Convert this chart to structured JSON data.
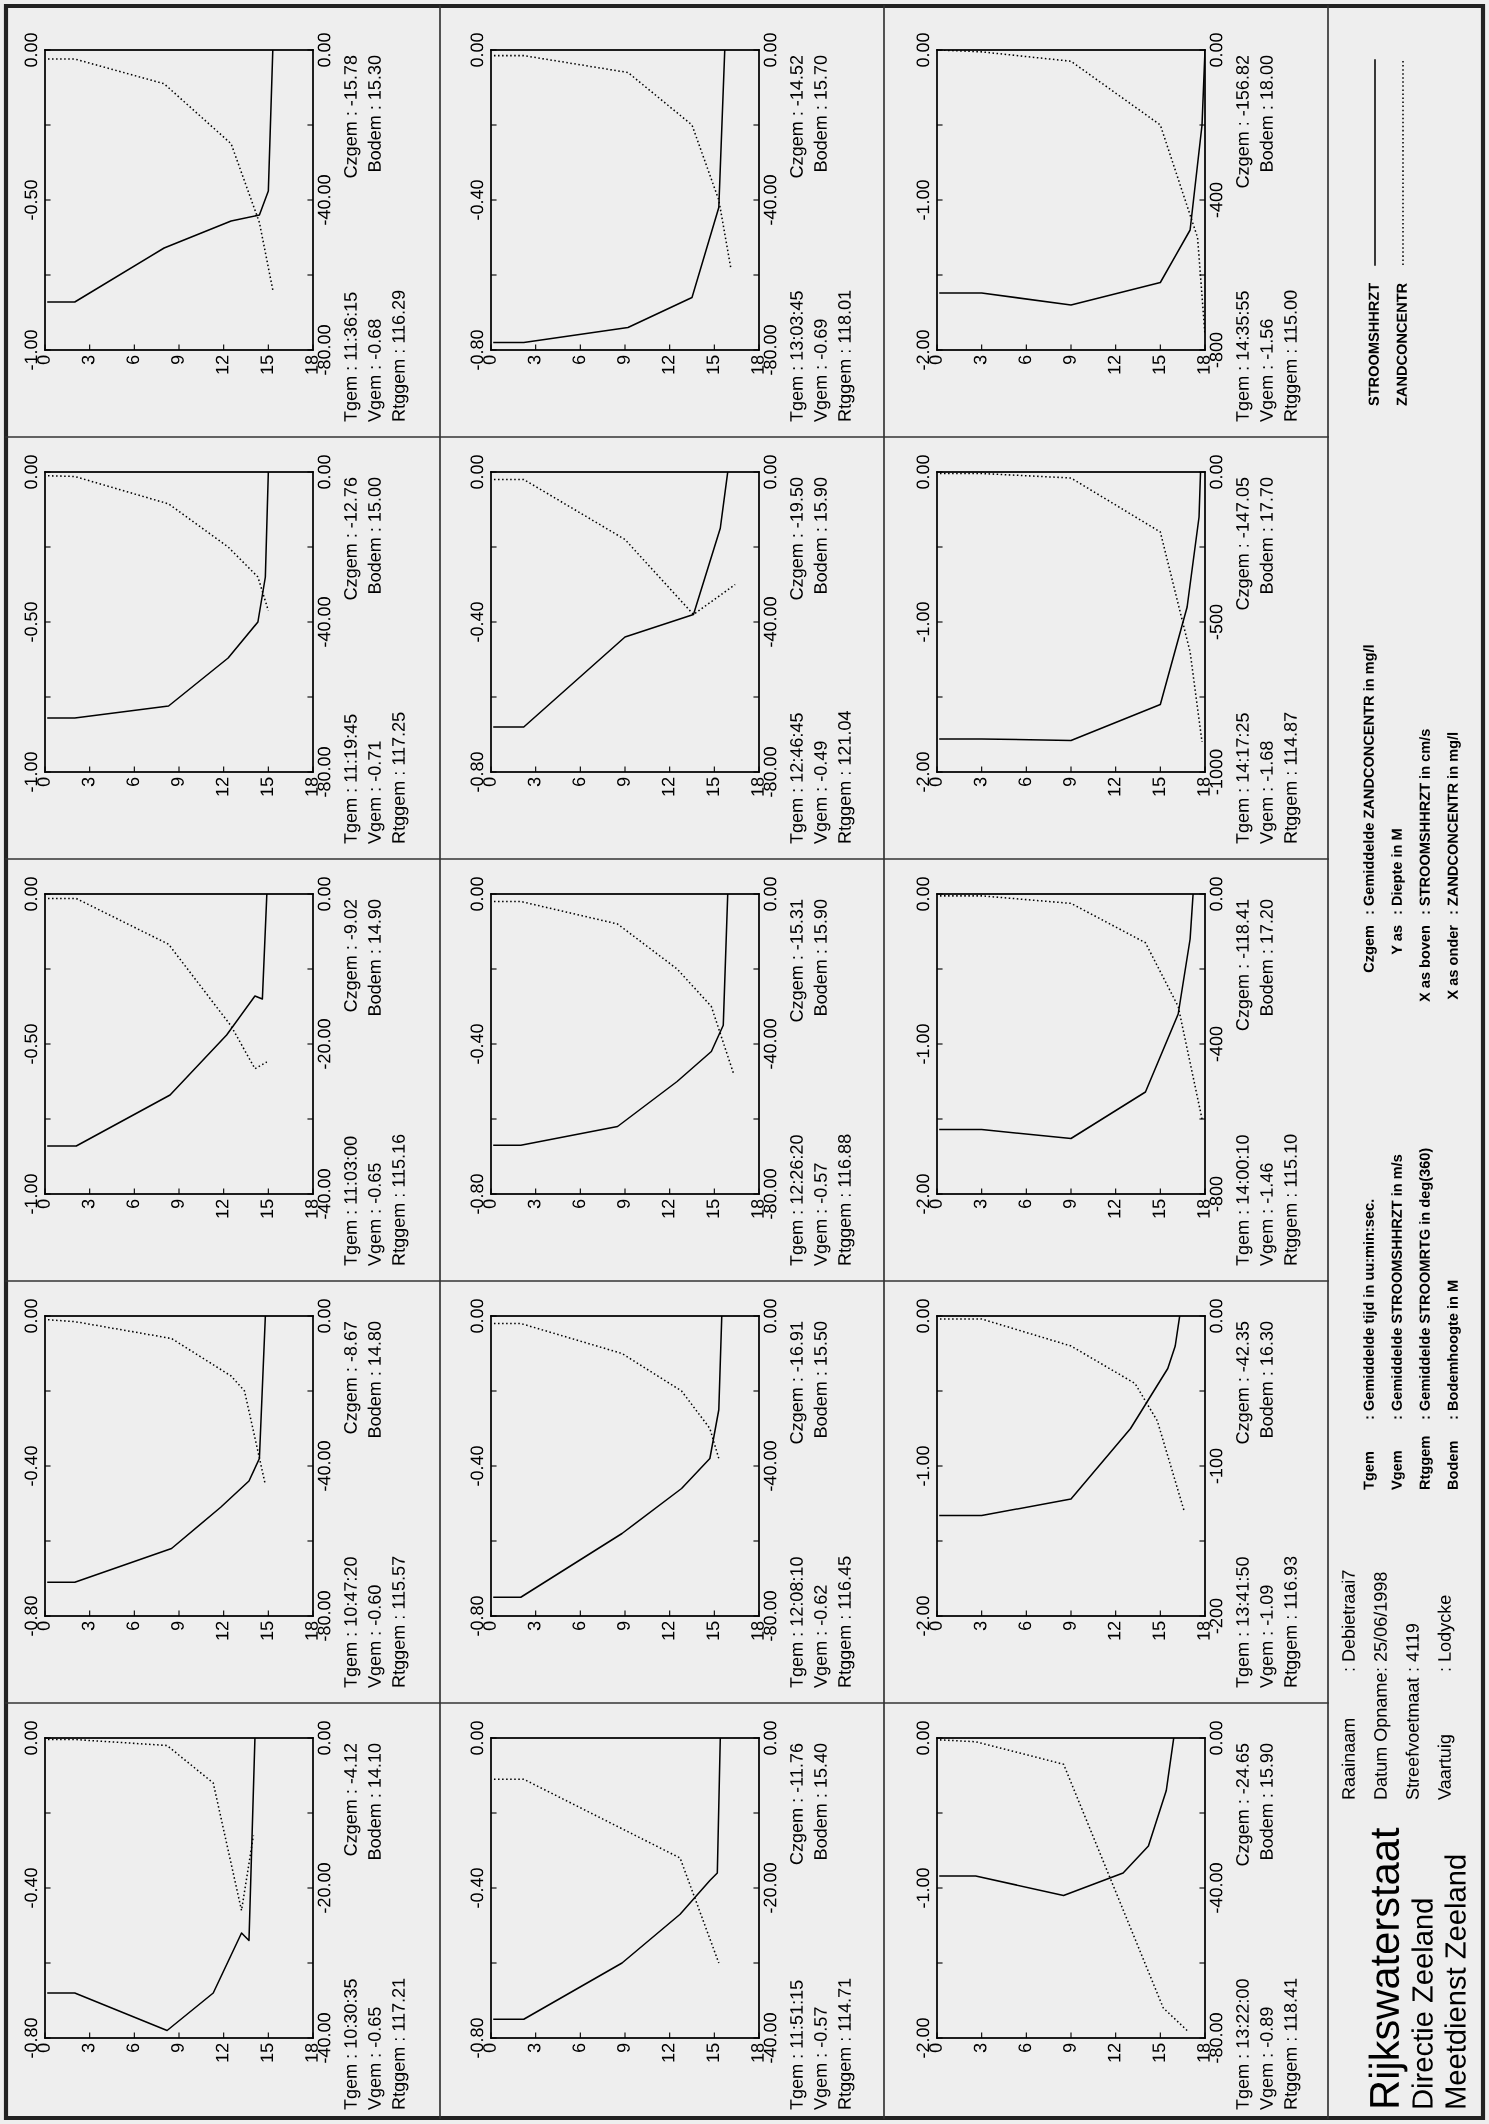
{
  "chart_data": [
    {
      "type": "line",
      "xlim": [
        0,
        18
      ],
      "xticks": [
        0,
        3,
        6,
        9,
        12,
        15,
        18
      ],
      "ylim": [
        -0.8,
        0
      ],
      "yticks": [
        {
          "value": -0.8,
          "label": "-0.80"
        },
        {
          "value": -0.6,
          "label": null
        },
        {
          "value": -0.4,
          "label": "-0.40"
        },
        {
          "value": -0.2,
          "label": null
        },
        {
          "value": 0,
          "label": "0.00"
        }
      ],
      "y2lim": [
        -40,
        0
      ],
      "y2ticks": [
        {
          "value": -40,
          "label": "-40.00"
        },
        {
          "value": -30,
          "label": null
        },
        {
          "value": -20,
          "label": "-20.00"
        },
        {
          "value": -10,
          "label": null
        },
        {
          "value": 0,
          "label": "0.00"
        }
      ],
      "series": [
        {
          "color": "#000000",
          "line_style": "solid",
          "x": [
            0.2,
            2,
            8.2,
            11.3,
            13.2,
            13.7,
            14.1
          ],
          "values": [
            -0.68,
            -0.68,
            -0.78,
            -0.68,
            -0.52,
            -0.54,
            0
          ]
        },
        {
          "color": "#000000",
          "line_style": "dotted",
          "axis": "y2",
          "x": [
            0.2,
            2,
            8.2,
            11.3,
            13.2,
            14.0
          ],
          "values": [
            -0.2,
            -0.2,
            -1.0,
            -6,
            -23,
            -13
          ]
        }
      ],
      "annotations": [
        "Tgem : 10:30:35",
        "Czgem : -4.12",
        "Vgem : -0.65",
        "Bodem : 14.10",
        "Rtggem : 117.21"
      ]
    },
    {
      "type": "line",
      "xlim": [
        0,
        18
      ],
      "xticks": [
        0,
        3,
        6,
        9,
        12,
        15,
        18
      ],
      "ylim": [
        -0.8,
        0
      ],
      "yticks": [
        {
          "value": -0.8,
          "label": "-0.80"
        },
        {
          "value": -0.6,
          "label": null
        },
        {
          "value": -0.4,
          "label": "-0.40"
        },
        {
          "value": -0.2,
          "label": null
        },
        {
          "value": 0,
          "label": "0.00"
        }
      ],
      "y2lim": [
        -80,
        0
      ],
      "y2ticks": [
        {
          "value": -80,
          "label": "-80.00"
        },
        {
          "value": -60,
          "label": null
        },
        {
          "value": -40,
          "label": "-40.00"
        },
        {
          "value": -20,
          "label": null
        },
        {
          "value": 0,
          "label": "0.00"
        }
      ],
      "series": [
        {
          "color": "#000000",
          "line_style": "solid",
          "x": [
            0.2,
            2,
            8.5,
            11.8,
            13.7,
            14.4,
            14.8
          ],
          "values": [
            -0.71,
            -0.71,
            -0.62,
            -0.51,
            -0.44,
            -0.38,
            0
          ]
        },
        {
          "color": "#000000",
          "line_style": "dotted",
          "axis": "y2",
          "x": [
            0.2,
            2,
            8.5,
            12.5,
            13.4,
            14.8
          ],
          "values": [
            -1,
            -1.5,
            -6,
            -16,
            -20,
            -45
          ]
        }
      ],
      "annotations": [
        "Tgem : 10:47:20",
        "Czgem : -8.67",
        "Vgem : -0.60",
        "Bodem : 14.80",
        "Rtggem : 115.57"
      ]
    },
    {
      "type": "line",
      "xlim": [
        0,
        18
      ],
      "xticks": [
        0,
        3,
        6,
        9,
        12,
        15,
        18
      ],
      "ylim": [
        -1,
        0
      ],
      "yticks": [
        {
          "value": -1,
          "label": "-1.00"
        },
        {
          "value": -0.75,
          "label": null
        },
        {
          "value": -0.5,
          "label": "-0.50"
        },
        {
          "value": -0.25,
          "label": null
        },
        {
          "value": 0,
          "label": "0.00"
        }
      ],
      "y2lim": [
        -40,
        0
      ],
      "y2ticks": [
        {
          "value": -40,
          "label": "-40.00"
        },
        {
          "value": -30,
          "label": null
        },
        {
          "value": -20,
          "label": "-20.00"
        },
        {
          "value": -10,
          "label": null
        },
        {
          "value": 0,
          "label": "0.00"
        }
      ],
      "series": [
        {
          "color": "#000000",
          "line_style": "solid",
          "x": [
            0.2,
            2.1,
            8.4,
            12.2,
            14.1,
            14.6,
            14.9
          ],
          "values": [
            -0.84,
            -0.84,
            -0.67,
            -0.47,
            -0.34,
            -0.35,
            0
          ]
        },
        {
          "color": "#000000",
          "line_style": "dotted",
          "axis": "y2",
          "x": [
            0.2,
            2.1,
            8.3,
            12.5,
            14.1,
            14.9
          ],
          "values": [
            -0.6,
            -0.6,
            -6.7,
            -17.6,
            -23.3,
            -22.4
          ]
        }
      ],
      "annotations": [
        "Tgem : 11:03:00",
        "Czgem : -9.02",
        "Vgem : -0.65",
        "Bodem : 14.90",
        "Rtggem : 115.16"
      ]
    },
    {
      "type": "line",
      "xlim": [
        0,
        18
      ],
      "xticks": [
        0,
        3,
        6,
        9,
        12,
        15,
        18
      ],
      "ylim": [
        -1,
        0
      ],
      "yticks": [
        {
          "value": -1,
          "label": "-1.00"
        },
        {
          "value": -0.75,
          "label": null
        },
        {
          "value": -0.5,
          "label": "-0.50"
        },
        {
          "value": -0.25,
          "label": null
        },
        {
          "value": 0,
          "label": "0.00"
        }
      ],
      "y2lim": [
        -80,
        0
      ],
      "y2ticks": [
        {
          "value": -80,
          "label": "-80.00"
        },
        {
          "value": -60,
          "label": null
        },
        {
          "value": -40,
          "label": "-40.00"
        },
        {
          "value": -20,
          "label": null
        },
        {
          "value": 0,
          "label": "0.00"
        }
      ],
      "series": [
        {
          "color": "#000000",
          "line_style": "solid",
          "x": [
            0.2,
            2,
            8.3,
            12.3,
            14.3,
            14.8,
            15.0
          ],
          "values": [
            -0.82,
            -0.82,
            -0.78,
            -0.62,
            -0.5,
            -0.35,
            0
          ]
        },
        {
          "color": "#000000",
          "line_style": "dotted",
          "axis": "y2",
          "x": [
            0.2,
            2,
            8.3,
            12.3,
            14.3,
            15.0
          ],
          "values": [
            -1,
            -1.2,
            -8.5,
            -20,
            -28,
            -37
          ]
        }
      ],
      "annotations": [
        "Tgem : 11:19:45",
        "Czgem : -12.76",
        "Vgem : -0.71",
        "Bodem : 15.00",
        "Rtggem : 117.25"
      ]
    },
    {
      "type": "line",
      "xlim": [
        0,
        18
      ],
      "xticks": [
        0,
        3,
        6,
        9,
        12,
        15,
        18
      ],
      "ylim": [
        -1,
        0
      ],
      "yticks": [
        {
          "value": -1,
          "label": "-1.00"
        },
        {
          "value": -0.75,
          "label": null
        },
        {
          "value": -0.5,
          "label": "-0.50"
        },
        {
          "value": -0.25,
          "label": null
        },
        {
          "value": 0,
          "label": "0.00"
        }
      ],
      "y2lim": [
        -80,
        0
      ],
      "y2ticks": [
        {
          "value": -80,
          "label": "-80.00"
        },
        {
          "value": -60,
          "label": null
        },
        {
          "value": -40,
          "label": "-40.00"
        },
        {
          "value": -20,
          "label": null
        },
        {
          "value": 0,
          "label": "0.00"
        }
      ],
      "series": [
        {
          "color": "#000000",
          "line_style": "solid",
          "x": [
            0.2,
            2,
            8,
            12.5,
            14.4,
            15.0,
            15.3
          ],
          "values": [
            -0.84,
            -0.84,
            -0.66,
            -0.57,
            -0.55,
            -0.47,
            0
          ]
        },
        {
          "color": "#000000",
          "line_style": "dotted",
          "axis": "y2",
          "x": [
            0.2,
            2,
            8,
            12.5,
            14.4,
            15.3
          ],
          "values": [
            -2.4,
            -2.4,
            -9,
            -25,
            -46,
            -64
          ]
        }
      ],
      "annotations": [
        "Tgem : 11:36:15",
        "Czgem : -15.78",
        "Vgem : -0.68",
        "Bodem : 15.30",
        "Rtggem : 116.29"
      ]
    },
    {
      "type": "line",
      "xlim": [
        0,
        18
      ],
      "xticks": [
        0,
        3,
        6,
        9,
        12,
        15,
        18
      ],
      "ylim": [
        -0.8,
        0
      ],
      "yticks": [
        {
          "value": -0.8,
          "label": "-0.80"
        },
        {
          "value": -0.6,
          "label": null
        },
        {
          "value": -0.4,
          "label": "-0.40"
        },
        {
          "value": -0.2,
          "label": null
        },
        {
          "value": 0,
          "label": "0.00"
        }
      ],
      "y2lim": [
        -40,
        0
      ],
      "y2ticks": [
        {
          "value": -40,
          "label": "-40.00"
        },
        {
          "value": -30,
          "label": null
        },
        {
          "value": -20,
          "label": "-20.00"
        },
        {
          "value": -10,
          "label": null
        },
        {
          "value": 0,
          "label": "0.00"
        }
      ],
      "series": [
        {
          "color": "#000000",
          "line_style": "solid",
          "x": [
            0.2,
            2.2,
            8.8,
            12.7,
            14.7,
            15.2,
            15.4
          ],
          "values": [
            -0.75,
            -0.75,
            -0.6,
            -0.47,
            -0.38,
            -0.36,
            0
          ]
        },
        {
          "color": "#000000",
          "line_style": "dotted",
          "axis": "y2",
          "x": [
            0.2,
            2.2,
            12.7,
            15.3
          ],
          "values": [
            -5.5,
            -5.5,
            -16,
            -30
          ]
        }
      ],
      "annotations": [
        "Tgem : 11:51:15",
        "Czgem : -11.76",
        "Vgem : -0.57",
        "Bodem : 15.40",
        "Rtggem : 114.71"
      ]
    },
    {
      "type": "line",
      "xlim": [
        0,
        18
      ],
      "xticks": [
        0,
        3,
        6,
        9,
        12,
        15,
        18
      ],
      "ylim": [
        -0.8,
        0
      ],
      "yticks": [
        {
          "value": -0.8,
          "label": "-0.80"
        },
        {
          "value": -0.6,
          "label": null
        },
        {
          "value": -0.4,
          "label": "-0.40"
        },
        {
          "value": -0.2,
          "label": null
        },
        {
          "value": 0,
          "label": "0.00"
        }
      ],
      "y2lim": [
        -80,
        0
      ],
      "y2ticks": [
        {
          "value": -80,
          "label": "-80.00"
        },
        {
          "value": -60,
          "label": null
        },
        {
          "value": -40,
          "label": "-40.00"
        },
        {
          "value": -20,
          "label": null
        },
        {
          "value": 0,
          "label": "0.00"
        }
      ],
      "series": [
        {
          "color": "#000000",
          "line_style": "solid",
          "x": [
            0.2,
            2,
            8.8,
            12.8,
            14.7,
            15.3,
            15.5
          ],
          "values": [
            -0.75,
            -0.75,
            -0.58,
            -0.46,
            -0.38,
            -0.25,
            0
          ]
        },
        {
          "color": "#000000",
          "line_style": "dotted",
          "axis": "y2",
          "x": [
            0.2,
            2,
            8.8,
            12.8,
            14.7,
            15.3
          ],
          "values": [
            -2,
            -2,
            -10,
            -20,
            -30,
            -38
          ]
        }
      ],
      "annotations": [
        "Tgem : 12:08:10",
        "Czgem : -16.91",
        "Vgem : -0.62",
        "Bodem : 15.50",
        "Rtggem : 116.45"
      ]
    },
    {
      "type": "line",
      "xlim": [
        0,
        18
      ],
      "xticks": [
        0,
        3,
        6,
        9,
        12,
        15,
        18
      ],
      "ylim": [
        -0.8,
        0
      ],
      "yticks": [
        {
          "value": -0.8,
          "label": "-0.80"
        },
        {
          "value": -0.6,
          "label": null
        },
        {
          "value": -0.4,
          "label": "-0.40"
        },
        {
          "value": -0.2,
          "label": null
        },
        {
          "value": 0,
          "label": "0.00"
        }
      ],
      "y2lim": [
        -80,
        0
      ],
      "y2ticks": [
        {
          "value": -80,
          "label": "-80.00"
        },
        {
          "value": -60,
          "label": null
        },
        {
          "value": -40,
          "label": "-40.00"
        },
        {
          "value": -20,
          "label": null
        },
        {
          "value": 0,
          "label": "0.00"
        }
      ],
      "series": [
        {
          "color": "#000000",
          "line_style": "solid",
          "x": [
            0.2,
            2,
            8.5,
            12.5,
            14.8,
            15.6,
            15.9
          ],
          "values": [
            -0.67,
            -0.67,
            -0.62,
            -0.5,
            -0.42,
            -0.35,
            0
          ]
        },
        {
          "color": "#000000",
          "line_style": "dotted",
          "axis": "y2",
          "x": [
            0.2,
            2,
            8.5,
            12.5,
            14.8,
            16.3
          ],
          "values": [
            -2,
            -2,
            -8,
            -20,
            -30,
            -48
          ]
        }
      ],
      "annotations": [
        "Tgem : 12:26:20",
        "Czgem : -15.31",
        "Vgem : -0.57",
        "Bodem : 15.90",
        "Rtggem : 116.88"
      ]
    },
    {
      "type": "line",
      "xlim": [
        0,
        18
      ],
      "xticks": [
        0,
        3,
        6,
        9,
        12,
        15,
        18
      ],
      "ylim": [
        -0.8,
        0
      ],
      "yticks": [
        {
          "value": -0.8,
          "label": "-0.80"
        },
        {
          "value": -0.6,
          "label": null
        },
        {
          "value": -0.4,
          "label": "-0.40"
        },
        {
          "value": -0.2,
          "label": null
        },
        {
          "value": 0,
          "label": "0.00"
        }
      ],
      "y2lim": [
        -80,
        0
      ],
      "y2ticks": [
        {
          "value": -80,
          "label": "-80.00"
        },
        {
          "value": -60,
          "label": null
        },
        {
          "value": -40,
          "label": "-40.00"
        },
        {
          "value": -20,
          "label": null
        },
        {
          "value": 0,
          "label": "0.00"
        }
      ],
      "series": [
        {
          "color": "#000000",
          "line_style": "solid",
          "x": [
            0.2,
            2.2,
            9,
            13.6,
            15.4,
            15.9
          ],
          "values": [
            -0.68,
            -0.68,
            -0.44,
            -0.38,
            -0.15,
            0
          ]
        },
        {
          "color": "#000000",
          "line_style": "dotted",
          "axis": "y2",
          "x": [
            0.2,
            2.2,
            9,
            13.6,
            16.4
          ],
          "values": [
            -2,
            -2,
            -18,
            -38,
            -30
          ]
        }
      ],
      "annotations": [
        "Tgem : 12:46:45",
        "Czgem : -19.50",
        "Vgem : -0.49",
        "Bodem : 15.90",
        "Rtggem : 121.04"
      ]
    },
    {
      "type": "line",
      "xlim": [
        0,
        18
      ],
      "xticks": [
        0,
        3,
        6,
        9,
        12,
        15,
        18
      ],
      "ylim": [
        -0.8,
        0
      ],
      "yticks": [
        {
          "value": -0.8,
          "label": "-0.80"
        },
        {
          "value": -0.6,
          "label": null
        },
        {
          "value": -0.4,
          "label": "-0.40"
        },
        {
          "value": -0.2,
          "label": null
        },
        {
          "value": 0,
          "label": "0.00"
        }
      ],
      "y2lim": [
        -80,
        0
      ],
      "y2ticks": [
        {
          "value": -80,
          "label": "-80.00"
        },
        {
          "value": -60,
          "label": null
        },
        {
          "value": -40,
          "label": "-40.00"
        },
        {
          "value": -20,
          "label": null
        },
        {
          "value": 0,
          "label": "0.00"
        }
      ],
      "series": [
        {
          "color": "#000000",
          "line_style": "solid",
          "x": [
            0.2,
            2.2,
            9.2,
            13.5,
            15.3,
            15.7
          ],
          "values": [
            -0.78,
            -0.78,
            -0.74,
            -0.66,
            -0.42,
            0
          ]
        },
        {
          "color": "#000000",
          "line_style": "dotted",
          "axis": "y2",
          "x": [
            0.2,
            2.2,
            9.2,
            13.5,
            15.3,
            16.1
          ],
          "values": [
            -1.5,
            -1.5,
            -6,
            -20,
            -40,
            -58
          ]
        }
      ],
      "annotations": [
        "Tgem : 13:03:45",
        "Czgem : -14.52",
        "Vgem : -0.69",
        "Bodem : 15.70",
        "Rtggem : 118.01"
      ]
    },
    {
      "type": "line",
      "xlim": [
        0,
        18
      ],
      "xticks": [
        0,
        3,
        6,
        9,
        12,
        15,
        18
      ],
      "ylim": [
        -2,
        0
      ],
      "yticks": [
        {
          "value": -2,
          "label": "-2.00"
        },
        {
          "value": -1.5,
          "label": null
        },
        {
          "value": -1,
          "label": "-1.00"
        },
        {
          "value": -0.5,
          "label": null
        },
        {
          "value": 0,
          "label": "0.00"
        }
      ],
      "y2lim": [
        -80,
        0
      ],
      "y2ticks": [
        {
          "value": -80,
          "label": "-80.00"
        },
        {
          "value": -60,
          "label": null
        },
        {
          "value": -40,
          "label": "-40.00"
        },
        {
          "value": -20,
          "label": null
        },
        {
          "value": 0,
          "label": "0.00"
        }
      ],
      "series": [
        {
          "color": "#000000",
          "line_style": "solid",
          "x": [
            0.2,
            2.6,
            8.5,
            12.5,
            14.2,
            15.4,
            15.9
          ],
          "values": [
            -0.92,
            -0.92,
            -1.05,
            -0.9,
            -0.72,
            -0.35,
            0
          ]
        },
        {
          "color": "#000000",
          "line_style": "dotted",
          "axis": "y2",
          "x": [
            0.2,
            2.6,
            8.5,
            15.2,
            16.8
          ],
          "values": [
            -0.5,
            -1,
            -7,
            -72,
            -78
          ]
        }
      ],
      "annotations": [
        "Tgem : 13:22:00",
        "Czgem : -24.65",
        "Vgem : -0.89",
        "Bodem : 15.90",
        "Rtggem : 118.41"
      ]
    },
    {
      "type": "line",
      "xlim": [
        0,
        18
      ],
      "xticks": [
        0,
        3,
        6,
        9,
        12,
        15,
        18
      ],
      "ylim": [
        -2,
        0
      ],
      "yticks": [
        {
          "value": -2,
          "label": "-2.00"
        },
        {
          "value": -1.5,
          "label": null
        },
        {
          "value": -1,
          "label": "-1.00"
        },
        {
          "value": -0.5,
          "label": null
        },
        {
          "value": 0,
          "label": "0.00"
        }
      ],
      "y2lim": [
        -200,
        0
      ],
      "y2ticks": [
        {
          "value": -200,
          "label": "-200"
        },
        {
          "value": -150,
          "label": null
        },
        {
          "value": -100,
          "label": "-100"
        },
        {
          "value": -50,
          "label": null
        },
        {
          "value": 0,
          "label": "0.00"
        }
      ],
      "series": [
        {
          "color": "#000000",
          "line_style": "solid",
          "x": [
            0.2,
            3,
            9,
            13,
            15.5,
            16,
            16.3
          ],
          "values": [
            -1.33,
            -1.33,
            -1.22,
            -0.75,
            -0.35,
            -0.2,
            0
          ]
        },
        {
          "color": "#000000",
          "line_style": "dotted",
          "axis": "y2",
          "x": [
            0.2,
            3,
            9,
            13.3,
            14.8,
            16.6
          ],
          "values": [
            -2,
            -2,
            -20,
            -45,
            -70,
            -130
          ]
        }
      ],
      "annotations": [
        "Tgem : 13:41:50",
        "Czgem : -42.35",
        "Vgem : -1.09",
        "Bodem : 16.30",
        "Rtggem : 116.93"
      ]
    },
    {
      "type": "line",
      "xlim": [
        0,
        18
      ],
      "xticks": [
        0,
        3,
        6,
        9,
        12,
        15,
        18
      ],
      "ylim": [
        -2,
        0
      ],
      "yticks": [
        {
          "value": -2,
          "label": "-2.00"
        },
        {
          "value": -1.5,
          "label": null
        },
        {
          "value": -1,
          "label": "-1.00"
        },
        {
          "value": -0.5,
          "label": null
        },
        {
          "value": 0,
          "label": "0.00"
        }
      ],
      "y2lim": [
        -800,
        0
      ],
      "y2ticks": [
        {
          "value": -800,
          "label": "-800"
        },
        {
          "value": -600,
          "label": null
        },
        {
          "value": -400,
          "label": "-400"
        },
        {
          "value": -200,
          "label": null
        },
        {
          "value": 0,
          "label": "0.00"
        }
      ],
      "series": [
        {
          "color": "#000000",
          "line_style": "solid",
          "x": [
            0.2,
            3,
            9,
            14,
            16.2,
            17.0,
            17.2
          ],
          "values": [
            -1.57,
            -1.57,
            -1.63,
            -1.32,
            -0.8,
            -0.3,
            0
          ]
        },
        {
          "color": "#000000",
          "line_style": "dotted",
          "axis": "y2",
          "x": [
            0.2,
            3,
            9,
            14,
            16.2,
            17.8
          ],
          "values": [
            -5,
            -5,
            -25,
            -130,
            -300,
            -600
          ]
        }
      ],
      "annotations": [
        "Tgem : 14:00:10",
        "Czgem : -118.41",
        "Vgem : -1.46",
        "Bodem : 17.20",
        "Rtggem : 115.10"
      ]
    },
    {
      "type": "line",
      "xlim": [
        0,
        18
      ],
      "xticks": [
        0,
        3,
        6,
        9,
        12,
        15,
        18
      ],
      "ylim": [
        -2,
        0
      ],
      "yticks": [
        {
          "value": -2,
          "label": "-2.00"
        },
        {
          "value": -1.5,
          "label": null
        },
        {
          "value": -1,
          "label": "-1.00"
        },
        {
          "value": -0.5,
          "label": null
        },
        {
          "value": 0,
          "label": "0.00"
        }
      ],
      "y2lim": [
        -1000,
        0
      ],
      "y2ticks": [
        {
          "value": -1000,
          "label": "-1000"
        },
        {
          "value": -750,
          "label": null
        },
        {
          "value": -500,
          "label": "-500"
        },
        {
          "value": -250,
          "label": null
        },
        {
          "value": 0,
          "label": "0.00"
        }
      ],
      "series": [
        {
          "color": "#000000",
          "line_style": "solid",
          "x": [
            0.2,
            3,
            9,
            15,
            16.8,
            17.6,
            17.7
          ],
          "values": [
            -1.78,
            -1.78,
            -1.79,
            -1.55,
            -0.9,
            -0.3,
            0
          ]
        },
        {
          "color": "#000000",
          "line_style": "dotted",
          "axis": "y2",
          "x": [
            0.2,
            3,
            9,
            15,
            17,
            17.8
          ],
          "values": [
            -5,
            -5,
            -20,
            -200,
            -600,
            -900
          ]
        }
      ],
      "annotations": [
        "Tgem : 14:17:25",
        "Czgem : -147.05",
        "Vgem : -1.68",
        "Bodem : 17.70",
        "Rtggem : 114.87"
      ]
    },
    {
      "type": "line",
      "xlim": [
        0,
        18
      ],
      "xticks": [
        0,
        3,
        6,
        9,
        12,
        15,
        18
      ],
      "ylim": [
        -2,
        0
      ],
      "yticks": [
        {
          "value": -2,
          "label": "-2.00"
        },
        {
          "value": -1.5,
          "label": null
        },
        {
          "value": -1,
          "label": "-1.00"
        },
        {
          "value": -0.5,
          "label": null
        },
        {
          "value": 0,
          "label": "0.00"
        }
      ],
      "y2lim": [
        -800,
        0
      ],
      "y2ticks": [
        {
          "value": -800,
          "label": "-800"
        },
        {
          "value": -600,
          "label": null
        },
        {
          "value": -400,
          "label": "-400"
        },
        {
          "value": -200,
          "label": null
        },
        {
          "value": 0,
          "label": "0.00"
        }
      ],
      "legend": "right",
      "series": [
        {
          "name": "STROOMSHHRZT",
          "color": "#000000",
          "line_style": "solid",
          "x": [
            0.2,
            3,
            9,
            15,
            17,
            17.8,
            18
          ],
          "values": [
            -1.62,
            -1.62,
            -1.7,
            -1.55,
            -1.2,
            -0.5,
            0
          ]
        },
        {
          "name": "ZANDCONCENTR",
          "color": "#000000",
          "line_style": "dotted",
          "axis": "y2",
          "x": [
            0.2,
            3,
            9,
            15,
            17.5,
            18
          ],
          "values": [
            0,
            -5,
            -30,
            -200,
            -500,
            -760
          ]
        }
      ],
      "annotations": [
        "Tgem : 14:35:55",
        "Czgem : -156.82",
        "Vgem : -1.56",
        "Bodem : 18.00",
        "Rtggem : 115.00"
      ]
    },
    {
      "type": "other",
      "title": "Rijkswaterstaat",
      "annotations": [
        "Directie Zeeland",
        "Meetdienst Zeeland",
        "Raainaam",
        ": Debietraai7",
        "Datum Opname",
        ": 25/06/1998",
        "Streefvoetmaat",
        ": 4119",
        "Vaartuig",
        ": Lodycke",
        "Tgem",
        ": Gemiddelde tijd in uu:min:sec.",
        "Vgem",
        ": Gemiddelde STROOMSHHRZT in m/s",
        "Rtggem",
        ": Gemiddelde STROOMRTG in deg(360)",
        "Bodem",
        ": Bodemhoogte in M",
        "Czgem",
        ": Gemiddelde ZANDCONCENTR in mg/l",
        "Y as",
        ": Diepte in M",
        "X as boven",
        ": STROOMSHHRZT in cm/s",
        "X as onder",
        ": ZANDCONCENTR in mg/l"
      ]
    }
  ]
}
